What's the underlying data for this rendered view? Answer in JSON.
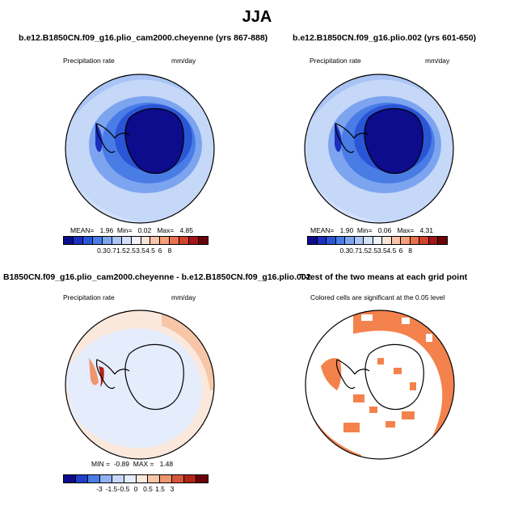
{
  "figure": {
    "title": "JJA"
  },
  "panels": [
    {
      "title": "b.e12.B1850CN.f09_g16.plio_cam2000.cheyenne (yrs 867-888)",
      "left_label": "Precipitation rate",
      "right_label": "mm/day",
      "stats": {
        "mean_label": "MEAN=",
        "mean": "1.96",
        "min_label": "Min=",
        "min": "0.02",
        "max_label": "Max=",
        "max": "4.85"
      },
      "colorbar_ticks": [
        "0.3",
        "0.7",
        "1.5",
        "2.5",
        "3.5",
        "4.5",
        "6",
        "8"
      ]
    },
    {
      "title": "b.e12.B1850CN.f09_g16.plio.002 (yrs 601-650)",
      "left_label": "Precipitation rate",
      "right_label": "mm/day",
      "stats": {
        "mean_label": "MEAN=",
        "mean": "1.90",
        "min_label": "Min=",
        "min": "0.06",
        "max_label": "Max=",
        "max": "4.31"
      },
      "colorbar_ticks": [
        "0.3",
        "0.7",
        "1.5",
        "2.5",
        "3.5",
        "4.5",
        "6",
        "8"
      ]
    },
    {
      "title": "B1850CN.f09_g16.plio_cam2000.cheyenne - b.e12.B1850CN.f09_g16.plio.002",
      "left_label": "Precipitation rate",
      "right_label": "mm/day",
      "stats": {
        "min_label": "MIN =",
        "min": "-0.89",
        "max_label": "MAX =",
        "max": "1.48"
      },
      "colorbar_ticks": [
        "-3",
        "-1.5",
        "-0.5",
        "0",
        "0.5",
        "1.5",
        "3"
      ]
    },
    {
      "title": "T-test of the two means at each grid point",
      "subtitle": "Colored cells are significant at the 0.05 level"
    }
  ],
  "colors": {
    "precip_scale": [
      "#0c0c8c",
      "#1a2fbf",
      "#2a55d6",
      "#4a7ce6",
      "#7da4ef",
      "#a9c4f5",
      "#d2e0fa",
      "#eef2fb",
      "#fbe3d6",
      "#f8c4a8",
      "#f49f7a",
      "#e8714e",
      "#d1432c",
      "#a5161b",
      "#6b0008"
    ],
    "diff_scale": [
      "#0c0c8c",
      "#1f3fcc",
      "#4a7ce6",
      "#8fb1f2",
      "#c6d7f8",
      "#e5ecfb",
      "#fbe8dc",
      "#f7c5a8",
      "#ef956c",
      "#d7553a",
      "#b22318",
      "#6b0008"
    ],
    "ttest": "#f4824c"
  }
}
